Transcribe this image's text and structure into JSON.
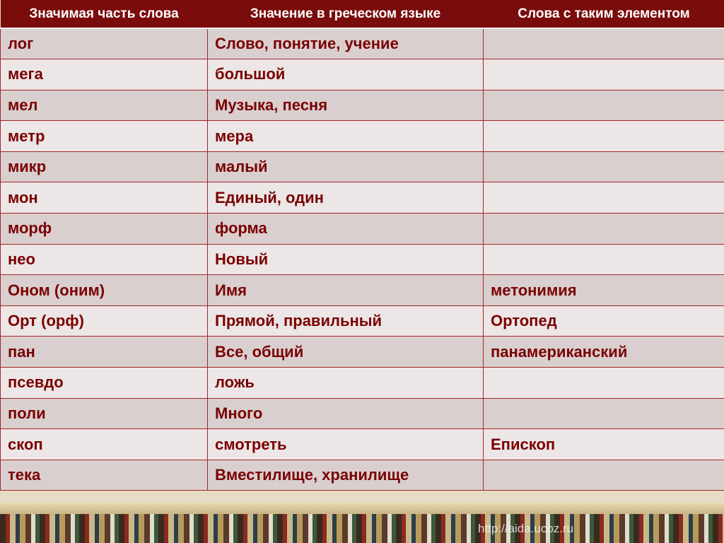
{
  "headers": [
    "Значимая часть слова",
    "Значение в греческом языке",
    "Слова с таким элементом"
  ],
  "rows": [
    [
      "лог",
      "Слово, понятие, учение",
      ""
    ],
    [
      "мега",
      "большой",
      ""
    ],
    [
      "мел",
      "Музыка, песня",
      ""
    ],
    [
      "метр",
      "мера",
      ""
    ],
    [
      "микр",
      "малый",
      ""
    ],
    [
      "мон",
      "Единый, один",
      ""
    ],
    [
      "морф",
      "форма",
      ""
    ],
    [
      "нео",
      "Новый",
      ""
    ],
    [
      "Оном (оним)",
      "Имя",
      "метонимия"
    ],
    [
      "Орт (орф)",
      "Прямой, правильный",
      "Ортопед"
    ],
    [
      "пан",
      "Все, общий",
      "панамериканский"
    ],
    [
      "псевдо",
      "ложь",
      ""
    ],
    [
      "поли",
      "Много",
      ""
    ],
    [
      "скоп",
      "смотреть",
      "Епископ"
    ],
    [
      "тека",
      "Вместилище, хранилище",
      ""
    ]
  ],
  "watermark": "http://aida.ucoz.ru"
}
